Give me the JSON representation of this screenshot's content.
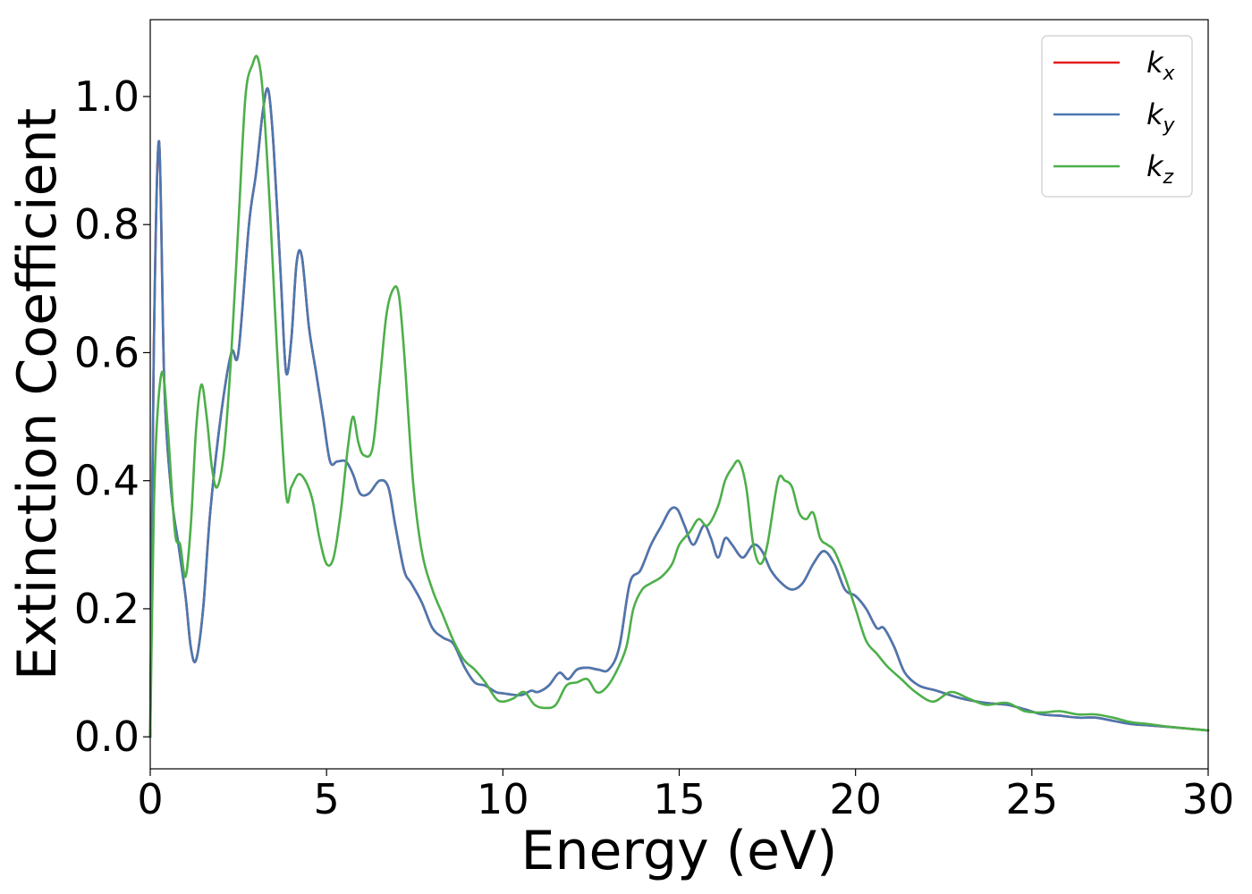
{
  "chart_data": {
    "type": "line",
    "title": "",
    "xlabel": "Energy (eV)",
    "ylabel": "Extinction Coefficient",
    "xlim": [
      0,
      30
    ],
    "ylim": [
      -0.05,
      1.12
    ],
    "xticks": [
      0,
      5,
      10,
      15,
      20,
      25,
      30
    ],
    "xtick_labels": [
      "0",
      "5",
      "10",
      "15",
      "20",
      "25",
      "30"
    ],
    "yticks": [
      0.0,
      0.2,
      0.4,
      0.6,
      0.8,
      1.0
    ],
    "ytick_labels": [
      "0.0",
      "0.2",
      "0.4",
      "0.6",
      "0.8",
      "1.0"
    ],
    "grid": false,
    "legend_position": "top-right",
    "series": [
      {
        "name": "k_x",
        "label_base": "k",
        "label_sub": "x",
        "color": "#e41a1c",
        "x": [
          0,
          0.1,
          0.25,
          0.4,
          0.6,
          0.8,
          1.0,
          1.15,
          1.3,
          1.5,
          1.7,
          2.0,
          2.3,
          2.5,
          2.8,
          3.0,
          3.2,
          3.35,
          3.5,
          3.7,
          3.85,
          4.0,
          4.15,
          4.3,
          4.5,
          4.7,
          4.9,
          5.1,
          5.3,
          5.55,
          5.75,
          5.95,
          6.2,
          6.5,
          6.75,
          6.95,
          7.2,
          7.4,
          7.7,
          8.0,
          8.3,
          8.6,
          8.9,
          9.2,
          9.5,
          9.8,
          10.0,
          10.5,
          10.8,
          11.0,
          11.3,
          11.6,
          11.85,
          12.1,
          12.4,
          12.7,
          13.0,
          13.3,
          13.6,
          13.9,
          14.2,
          14.5,
          14.75,
          14.95,
          15.15,
          15.4,
          15.7,
          15.9,
          16.1,
          16.3,
          16.5,
          16.8,
          17.1,
          17.35,
          17.6,
          17.9,
          18.2,
          18.5,
          18.8,
          19.1,
          19.4,
          19.7,
          20.0,
          20.3,
          20.6,
          20.8,
          21.1,
          21.4,
          21.8,
          22.3,
          23.0,
          23.7,
          24.3,
          24.8,
          25.3,
          25.8,
          26.3,
          26.8,
          27.3,
          27.8,
          28.3,
          29.0,
          30.0
        ],
        "y": [
          0.0,
          0.6,
          0.93,
          0.55,
          0.38,
          0.3,
          0.22,
          0.14,
          0.12,
          0.2,
          0.35,
          0.5,
          0.6,
          0.6,
          0.8,
          0.88,
          0.98,
          1.01,
          0.92,
          0.72,
          0.57,
          0.62,
          0.74,
          0.75,
          0.64,
          0.57,
          0.5,
          0.43,
          0.43,
          0.43,
          0.41,
          0.38,
          0.38,
          0.4,
          0.39,
          0.33,
          0.26,
          0.24,
          0.21,
          0.17,
          0.155,
          0.145,
          0.11,
          0.085,
          0.08,
          0.07,
          0.068,
          0.065,
          0.072,
          0.07,
          0.08,
          0.1,
          0.09,
          0.105,
          0.108,
          0.105,
          0.105,
          0.14,
          0.24,
          0.26,
          0.3,
          0.33,
          0.355,
          0.355,
          0.33,
          0.3,
          0.33,
          0.31,
          0.28,
          0.31,
          0.3,
          0.28,
          0.3,
          0.29,
          0.26,
          0.24,
          0.23,
          0.24,
          0.27,
          0.29,
          0.27,
          0.23,
          0.22,
          0.2,
          0.17,
          0.17,
          0.14,
          0.1,
          0.08,
          0.072,
          0.06,
          0.053,
          0.05,
          0.043,
          0.035,
          0.033,
          0.03,
          0.03,
          0.025,
          0.02,
          0.018,
          0.015,
          0.01
        ]
      },
      {
        "name": "k_y",
        "label_base": "k",
        "label_sub": "y",
        "color": "#4a78b0",
        "x": [
          0,
          0.1,
          0.25,
          0.4,
          0.6,
          0.8,
          1.0,
          1.15,
          1.3,
          1.5,
          1.7,
          2.0,
          2.3,
          2.5,
          2.8,
          3.0,
          3.2,
          3.35,
          3.5,
          3.7,
          3.85,
          4.0,
          4.15,
          4.3,
          4.5,
          4.7,
          4.9,
          5.1,
          5.3,
          5.55,
          5.75,
          5.95,
          6.2,
          6.5,
          6.75,
          6.95,
          7.2,
          7.4,
          7.7,
          8.0,
          8.3,
          8.6,
          8.9,
          9.2,
          9.5,
          9.8,
          10.0,
          10.5,
          10.8,
          11.0,
          11.3,
          11.6,
          11.85,
          12.1,
          12.4,
          12.7,
          13.0,
          13.3,
          13.6,
          13.9,
          14.2,
          14.5,
          14.75,
          14.95,
          15.15,
          15.4,
          15.7,
          15.9,
          16.1,
          16.3,
          16.5,
          16.8,
          17.1,
          17.35,
          17.6,
          17.9,
          18.2,
          18.5,
          18.8,
          19.1,
          19.4,
          19.7,
          20.0,
          20.3,
          20.6,
          20.8,
          21.1,
          21.4,
          21.8,
          22.3,
          23.0,
          23.7,
          24.3,
          24.8,
          25.3,
          25.8,
          26.3,
          26.8,
          27.3,
          27.8,
          28.3,
          29.0,
          30.0
        ],
        "y": [
          0.0,
          0.6,
          0.93,
          0.55,
          0.38,
          0.3,
          0.22,
          0.14,
          0.12,
          0.2,
          0.35,
          0.5,
          0.6,
          0.6,
          0.8,
          0.88,
          0.98,
          1.01,
          0.92,
          0.72,
          0.57,
          0.62,
          0.74,
          0.75,
          0.64,
          0.57,
          0.5,
          0.43,
          0.43,
          0.43,
          0.41,
          0.38,
          0.38,
          0.4,
          0.39,
          0.33,
          0.26,
          0.24,
          0.21,
          0.17,
          0.155,
          0.145,
          0.11,
          0.085,
          0.08,
          0.07,
          0.068,
          0.065,
          0.072,
          0.07,
          0.08,
          0.1,
          0.09,
          0.105,
          0.108,
          0.105,
          0.105,
          0.14,
          0.24,
          0.26,
          0.3,
          0.33,
          0.355,
          0.355,
          0.33,
          0.3,
          0.33,
          0.31,
          0.28,
          0.31,
          0.3,
          0.28,
          0.3,
          0.29,
          0.26,
          0.24,
          0.23,
          0.24,
          0.27,
          0.29,
          0.27,
          0.23,
          0.22,
          0.2,
          0.17,
          0.17,
          0.14,
          0.1,
          0.08,
          0.072,
          0.06,
          0.053,
          0.05,
          0.043,
          0.035,
          0.033,
          0.03,
          0.03,
          0.025,
          0.02,
          0.018,
          0.015,
          0.01
        ]
      },
      {
        "name": "k_z",
        "label_base": "k",
        "label_sub": "z",
        "color": "#4daf4a",
        "x": [
          0,
          0.1,
          0.2,
          0.35,
          0.5,
          0.7,
          0.85,
          1.0,
          1.15,
          1.3,
          1.45,
          1.6,
          1.75,
          1.9,
          2.1,
          2.3,
          2.5,
          2.7,
          2.9,
          3.05,
          3.2,
          3.4,
          3.6,
          3.85,
          4.0,
          4.2,
          4.4,
          4.6,
          4.8,
          5.0,
          5.2,
          5.4,
          5.6,
          5.75,
          5.9,
          6.05,
          6.3,
          6.5,
          6.7,
          6.9,
          7.05,
          7.2,
          7.45,
          7.7,
          8.0,
          8.3,
          8.6,
          8.9,
          9.2,
          9.5,
          9.8,
          10.0,
          10.3,
          10.6,
          10.9,
          11.2,
          11.5,
          11.8,
          12.1,
          12.4,
          12.65,
          12.9,
          13.2,
          13.5,
          13.7,
          13.95,
          14.2,
          14.5,
          14.8,
          15.0,
          15.3,
          15.55,
          15.8,
          16.1,
          16.3,
          16.5,
          16.7,
          16.9,
          17.1,
          17.3,
          17.5,
          17.8,
          18.0,
          18.2,
          18.4,
          18.6,
          18.8,
          19.0,
          19.2,
          19.4,
          19.7,
          20.0,
          20.3,
          20.6,
          20.9,
          21.3,
          21.7,
          22.2,
          22.7,
          23.2,
          23.7,
          24.3,
          24.8,
          25.3,
          25.8,
          26.3,
          26.8,
          27.3,
          27.8,
          28.3,
          29.0,
          30.0
        ],
        "y": [
          0.0,
          0.35,
          0.5,
          0.57,
          0.48,
          0.32,
          0.3,
          0.25,
          0.33,
          0.48,
          0.55,
          0.5,
          0.42,
          0.39,
          0.45,
          0.6,
          0.8,
          1.0,
          1.05,
          1.06,
          1.0,
          0.82,
          0.6,
          0.38,
          0.39,
          0.41,
          0.4,
          0.37,
          0.31,
          0.27,
          0.28,
          0.35,
          0.45,
          0.5,
          0.46,
          0.44,
          0.45,
          0.55,
          0.66,
          0.7,
          0.69,
          0.6,
          0.4,
          0.29,
          0.23,
          0.19,
          0.15,
          0.12,
          0.105,
          0.085,
          0.06,
          0.055,
          0.06,
          0.07,
          0.05,
          0.045,
          0.05,
          0.08,
          0.085,
          0.09,
          0.07,
          0.075,
          0.1,
          0.14,
          0.2,
          0.23,
          0.24,
          0.25,
          0.27,
          0.3,
          0.32,
          0.34,
          0.33,
          0.36,
          0.4,
          0.42,
          0.43,
          0.39,
          0.3,
          0.27,
          0.3,
          0.4,
          0.4,
          0.39,
          0.35,
          0.34,
          0.35,
          0.31,
          0.3,
          0.29,
          0.25,
          0.2,
          0.15,
          0.13,
          0.11,
          0.09,
          0.07,
          0.055,
          0.07,
          0.06,
          0.05,
          0.053,
          0.04,
          0.038,
          0.04,
          0.035,
          0.035,
          0.03,
          0.023,
          0.02,
          0.015,
          0.01
        ]
      }
    ]
  }
}
